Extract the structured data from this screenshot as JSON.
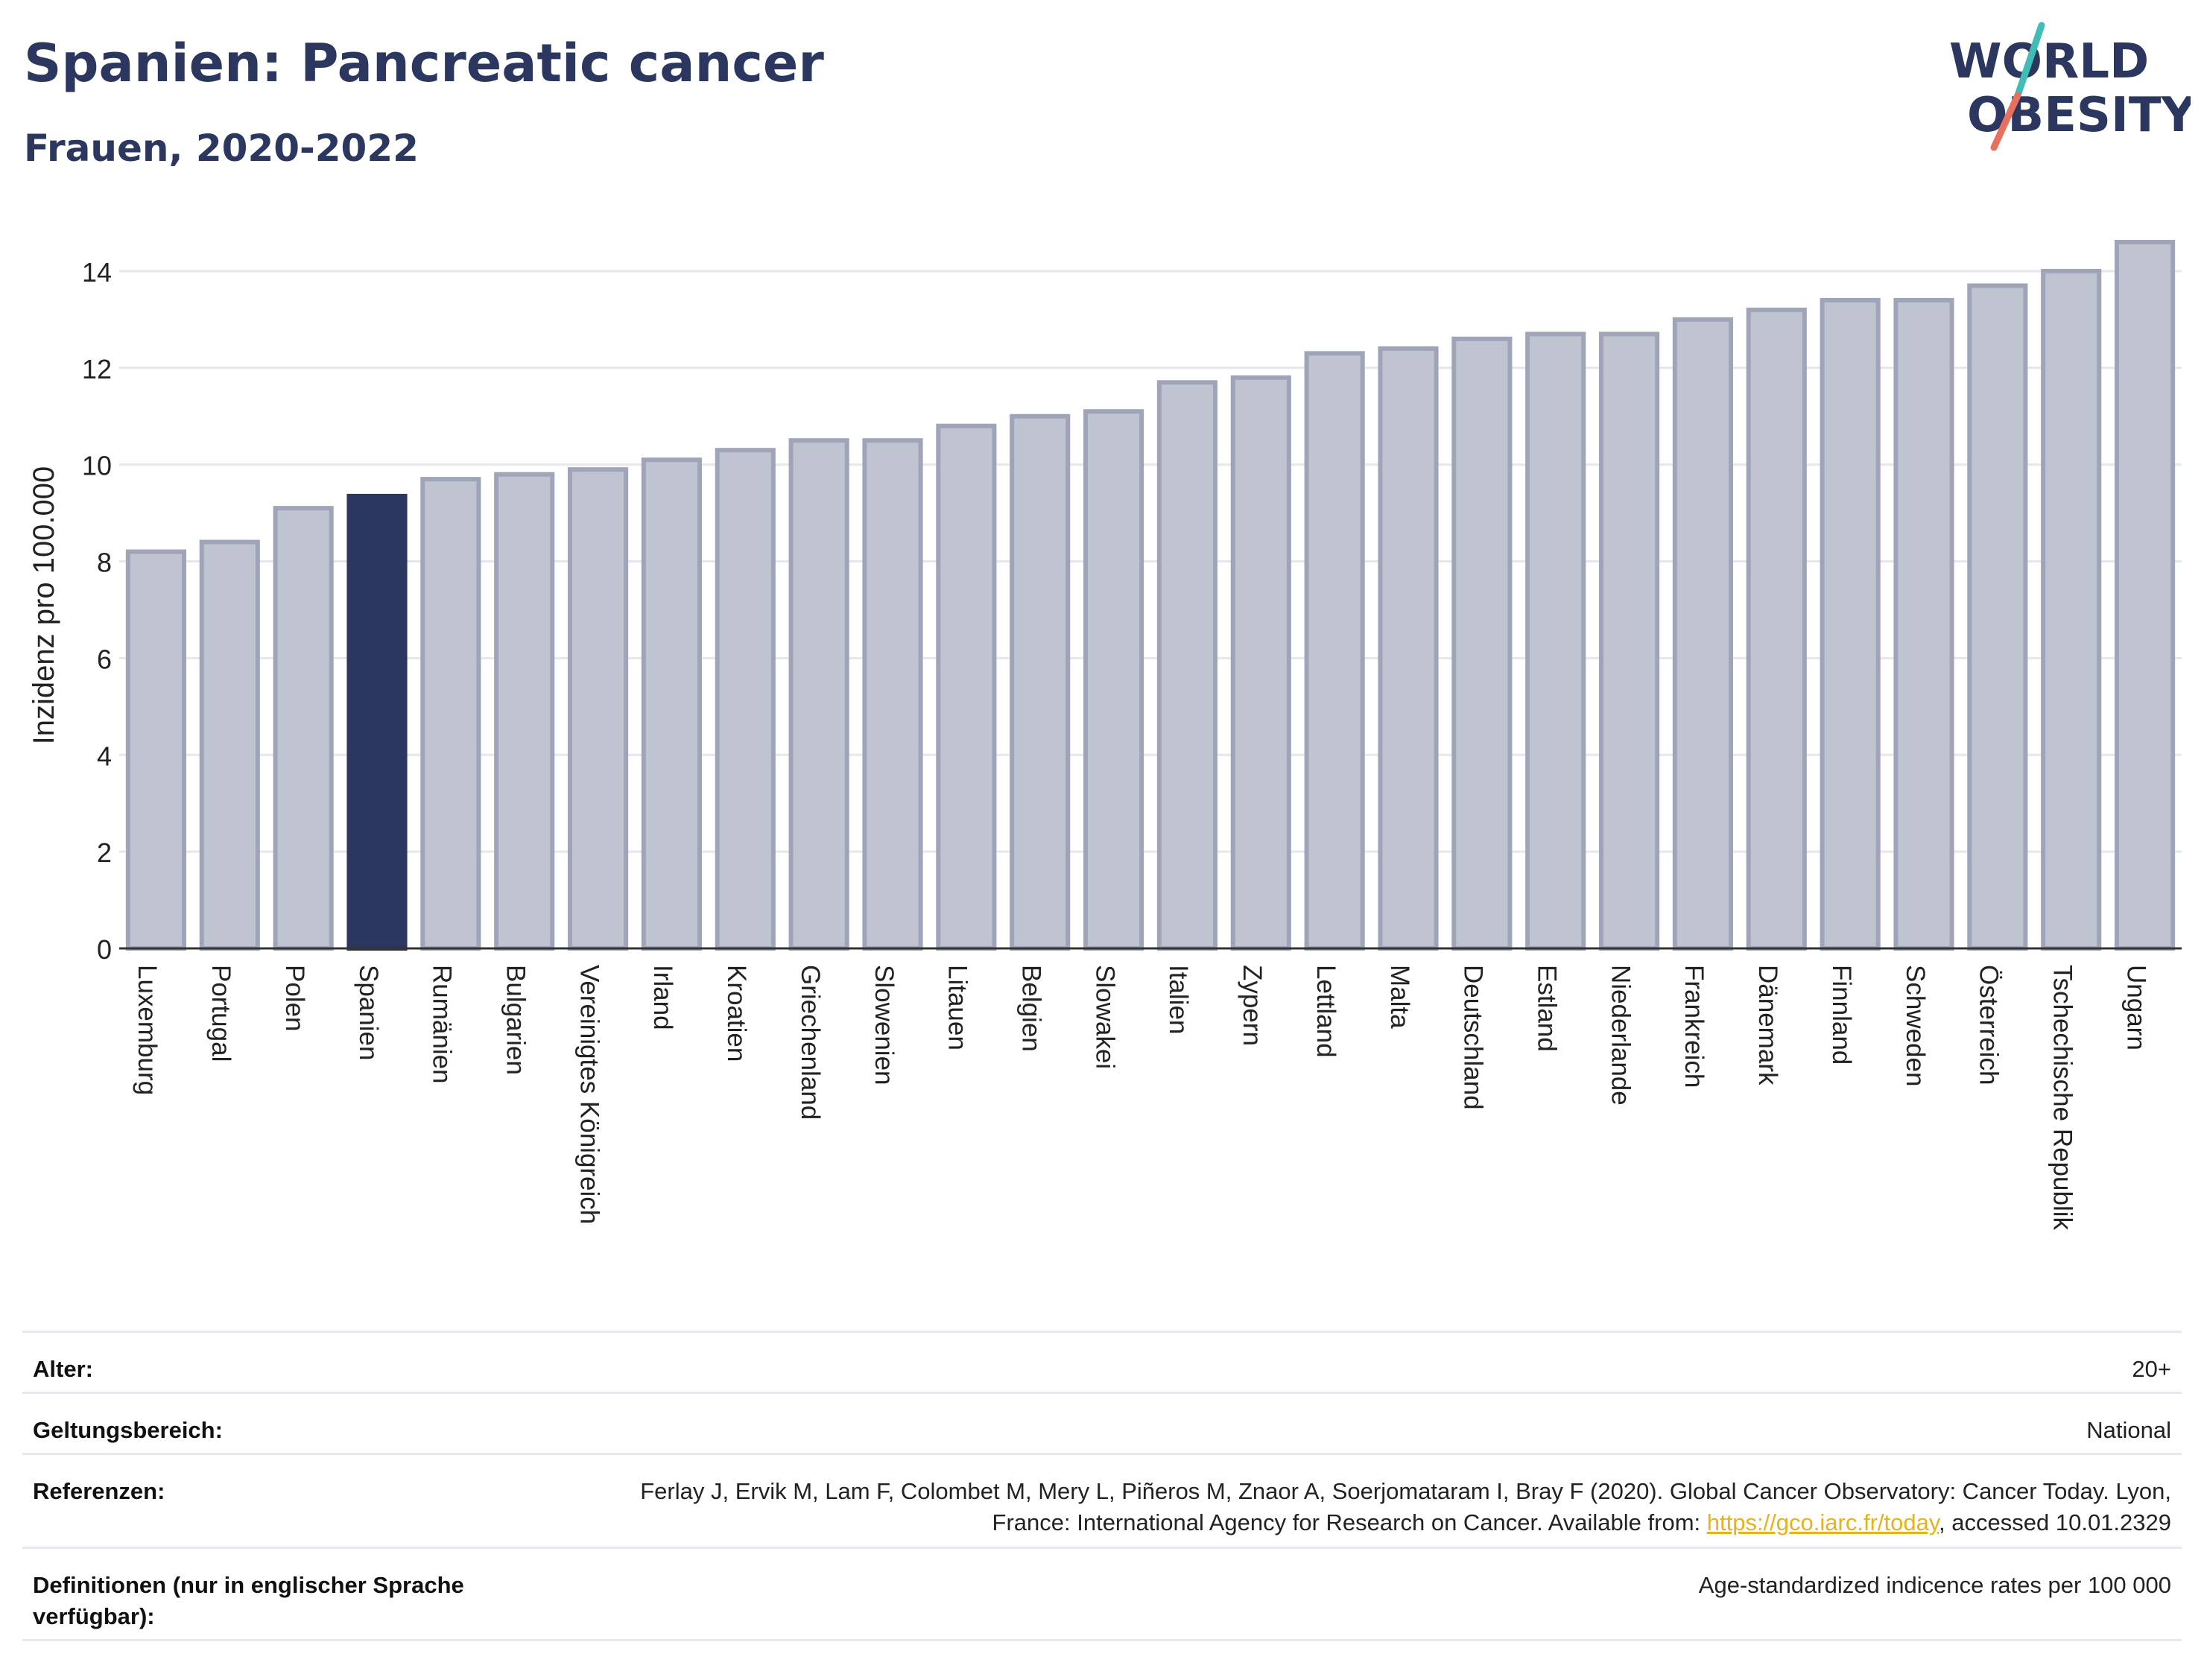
{
  "header": {
    "title": "Spanien: Pancreatic cancer",
    "subtitle": "Frauen, 2020-2022"
  },
  "logo": {
    "line1": "WORLD",
    "line2": "OBESITY",
    "accent_teal": "#3fbdb6",
    "accent_coral": "#e8705e",
    "text_color": "#2b375e"
  },
  "chart_data": {
    "type": "bar",
    "title": "",
    "xlabel": "",
    "ylabel": "Inzidenz pro 100.000",
    "ylim": [
      0,
      14.8
    ],
    "yticks": [
      0,
      2,
      4,
      6,
      8,
      10,
      12,
      14
    ],
    "grid": true,
    "highlight": "Spanien",
    "colors": {
      "default": "#c0c3d0",
      "default_border": "#9fa4b9",
      "highlight": "#2b375e"
    },
    "categories": [
      "Luxemburg",
      "Portugal",
      "Polen",
      "Spanien",
      "Rumänien",
      "Bulgarien",
      "Vereinigtes Königreich",
      "Irland",
      "Kroatien",
      "Griechenland",
      "Slowenien",
      "Litauen",
      "Belgien",
      "Slowakei",
      "Italien",
      "Zypern",
      "Lettland",
      "Malta",
      "Deutschland",
      "Estland",
      "Niederlande",
      "Frankreich",
      "Dänemark",
      "Finnland",
      "Schweden",
      "Österreich",
      "Tschechische Republik",
      "Ungarn"
    ],
    "values": [
      8.2,
      8.4,
      9.1,
      9.35,
      9.7,
      9.8,
      9.9,
      10.1,
      10.3,
      10.5,
      10.5,
      10.8,
      11.0,
      11.1,
      11.7,
      11.8,
      12.3,
      12.4,
      12.6,
      12.7,
      12.7,
      13.0,
      13.2,
      13.4,
      13.4,
      13.7,
      14.0,
      14.6
    ]
  },
  "meta": {
    "age_label": "Alter:",
    "age_value": "20+",
    "scope_label": "Geltungsbereich:",
    "scope_value": "National",
    "ref_label": "Referenzen:",
    "ref_text_1": "Ferlay J, Ervik M, Lam F, Colombet M, Mery L, Piñeros M, Znaor A, Soerjomataram I, Bray F (2020). Global Cancer Observatory: Cancer Today. Lyon, France: International Agency for Research on Cancer. Available from: ",
    "ref_link": "https://gco.iarc.fr/today",
    "ref_text_2": ", accessed 10.01.2329",
    "def_label": "Definitionen (nur in englischer Sprache verfügbar):",
    "def_value": "Age-standardized indicence rates per 100 000"
  }
}
